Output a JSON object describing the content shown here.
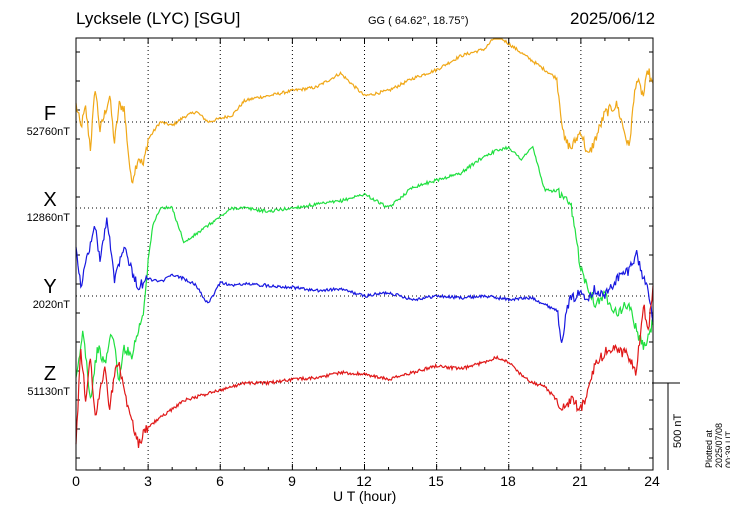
{
  "header": {
    "station": "Lycksele (LYC)  [SGU]",
    "coords": "GG ( 64.62°,  18.75°)",
    "date": "2025/06/12"
  },
  "footer": {
    "plotted": "Plotted at 2025/07/08 00:39 UT",
    "scale": "500 nT"
  },
  "chart_data": {
    "type": "line",
    "title": "Lycksele (LYC)  [SGU]",
    "xlabel": "U T (hour)",
    "ylabel": "",
    "xlim": [
      0,
      24
    ],
    "xticks": [
      "0",
      "3",
      "6",
      "9",
      "12",
      "15",
      "18",
      "21",
      "24"
    ],
    "grid": true,
    "scale_bar_nT": 500,
    "series": [
      {
        "name": "F",
        "baseline": "52760nT",
        "color": "#f0a818",
        "x": [
          0,
          0.2,
          0.4,
          0.6,
          0.8,
          1.0,
          1.2,
          1.4,
          1.6,
          1.8,
          2.0,
          2.3,
          2.6,
          2.8,
          3.0,
          3.5,
          4.0,
          4.5,
          5.0,
          5.5,
          6.0,
          6.5,
          7.0,
          7.5,
          8.0,
          9.0,
          10.0,
          11.0,
          12.0,
          13.0,
          14.0,
          15.0,
          16.0,
          17.0,
          17.5,
          18.0,
          18.5,
          19.0,
          19.5,
          20.0,
          20.3,
          20.6,
          21.0,
          21.3,
          21.6,
          22.0,
          22.5,
          23.0,
          23.3,
          23.6,
          23.8,
          24.0
        ],
        "y": [
          100,
          -30,
          80,
          -150,
          200,
          -50,
          50,
          150,
          -120,
          100,
          80,
          -350,
          -200,
          -250,
          -100,
          0,
          -20,
          30,
          60,
          0,
          20,
          40,
          120,
          140,
          150,
          180,
          200,
          280,
          150,
          180,
          250,
          300,
          380,
          420,
          500,
          450,
          400,
          350,
          300,
          250,
          -100,
          -150,
          -50,
          -200,
          -100,
          50,
          100,
          -150,
          250,
          150,
          300,
          200
        ]
      },
      {
        "name": "X",
        "baseline": "12860nT",
        "color": "#20e040",
        "x": [
          0,
          0.3,
          0.6,
          0.9,
          1.2,
          1.5,
          1.8,
          2.0,
          2.3,
          2.6,
          2.8,
          3.0,
          3.2,
          3.5,
          4.0,
          4.5,
          5.0,
          5.5,
          6.0,
          6.5,
          7.0,
          8.0,
          9.0,
          10.0,
          11.0,
          12.0,
          13.0,
          14.0,
          15.0,
          16.0,
          17.0,
          17.5,
          18.0,
          18.5,
          19.0,
          19.5,
          20.0,
          20.3,
          20.6,
          21.0,
          21.3,
          21.6,
          22.0,
          22.5,
          23.0,
          23.3,
          23.6,
          23.8,
          24.0
        ],
        "y": [
          -1000,
          -700,
          -1100,
          -800,
          -900,
          -700,
          -1000,
          -800,
          -850,
          -700,
          -600,
          -300,
          -100,
          0,
          0,
          -200,
          -150,
          -100,
          -50,
          0,
          0,
          -20,
          0,
          20,
          40,
          80,
          0,
          120,
          160,
          200,
          300,
          330,
          350,
          280,
          350,
          100,
          100,
          50,
          0,
          -350,
          -450,
          -550,
          -500,
          -600,
          -550,
          -700,
          -800,
          -750,
          -650
        ]
      },
      {
        "name": "Y",
        "baseline": "2020nT",
        "color": "#1818e0",
        "x": [
          0,
          0.2,
          0.5,
          0.8,
          1.0,
          1.3,
          1.6,
          2.0,
          2.3,
          2.6,
          3.0,
          3.5,
          4.0,
          4.5,
          5.0,
          5.5,
          6.0,
          6.5,
          7.0,
          8.0,
          9.0,
          10.0,
          11.0,
          12.0,
          13.0,
          14.0,
          15.0,
          16.0,
          17.0,
          18.0,
          19.0,
          19.5,
          20.0,
          20.2,
          20.5,
          21.0,
          21.3,
          21.6,
          22.0,
          22.5,
          23.0,
          23.3,
          23.6,
          23.8,
          24.0
        ],
        "y": [
          300,
          50,
          250,
          400,
          200,
          450,
          100,
          300,
          150,
          50,
          100,
          80,
          120,
          100,
          60,
          -50,
          80,
          60,
          70,
          60,
          50,
          30,
          40,
          0,
          20,
          -20,
          0,
          -10,
          0,
          -20,
          -10,
          -50,
          -80,
          -250,
          -30,
          20,
          0,
          40,
          0,
          100,
          150,
          250,
          100,
          50,
          -150
        ]
      },
      {
        "name": "Z",
        "baseline": "51130nT",
        "color": "#e01818",
        "x": [
          0,
          0.2,
          0.4,
          0.6,
          0.8,
          1.0,
          1.2,
          1.4,
          1.6,
          1.8,
          2.0,
          2.3,
          2.6,
          2.8,
          3.0,
          3.5,
          4.0,
          4.5,
          5.0,
          5.5,
          6.0,
          6.5,
          7.0,
          8.0,
          9.0,
          10.0,
          11.0,
          12.0,
          13.0,
          14.0,
          15.0,
          16.0,
          17.0,
          17.5,
          18.0,
          18.5,
          19.0,
          19.5,
          20.0,
          20.3,
          20.6,
          21.0,
          21.3,
          21.6,
          22.0,
          22.5,
          23.0,
          23.3,
          23.6,
          23.8,
          24.0
        ],
        "y": [
          -350,
          200,
          -100,
          150,
          -200,
          -50,
          100,
          -150,
          50,
          120,
          -50,
          -200,
          -350,
          -300,
          -250,
          -200,
          -150,
          -100,
          -80,
          -60,
          -40,
          -20,
          0,
          0,
          20,
          30,
          60,
          50,
          20,
          60,
          100,
          80,
          120,
          150,
          120,
          50,
          0,
          -20,
          -100,
          -150,
          -100,
          -150,
          -50,
          100,
          180,
          200,
          150,
          50,
          450,
          300,
          550
        ]
      }
    ]
  }
}
